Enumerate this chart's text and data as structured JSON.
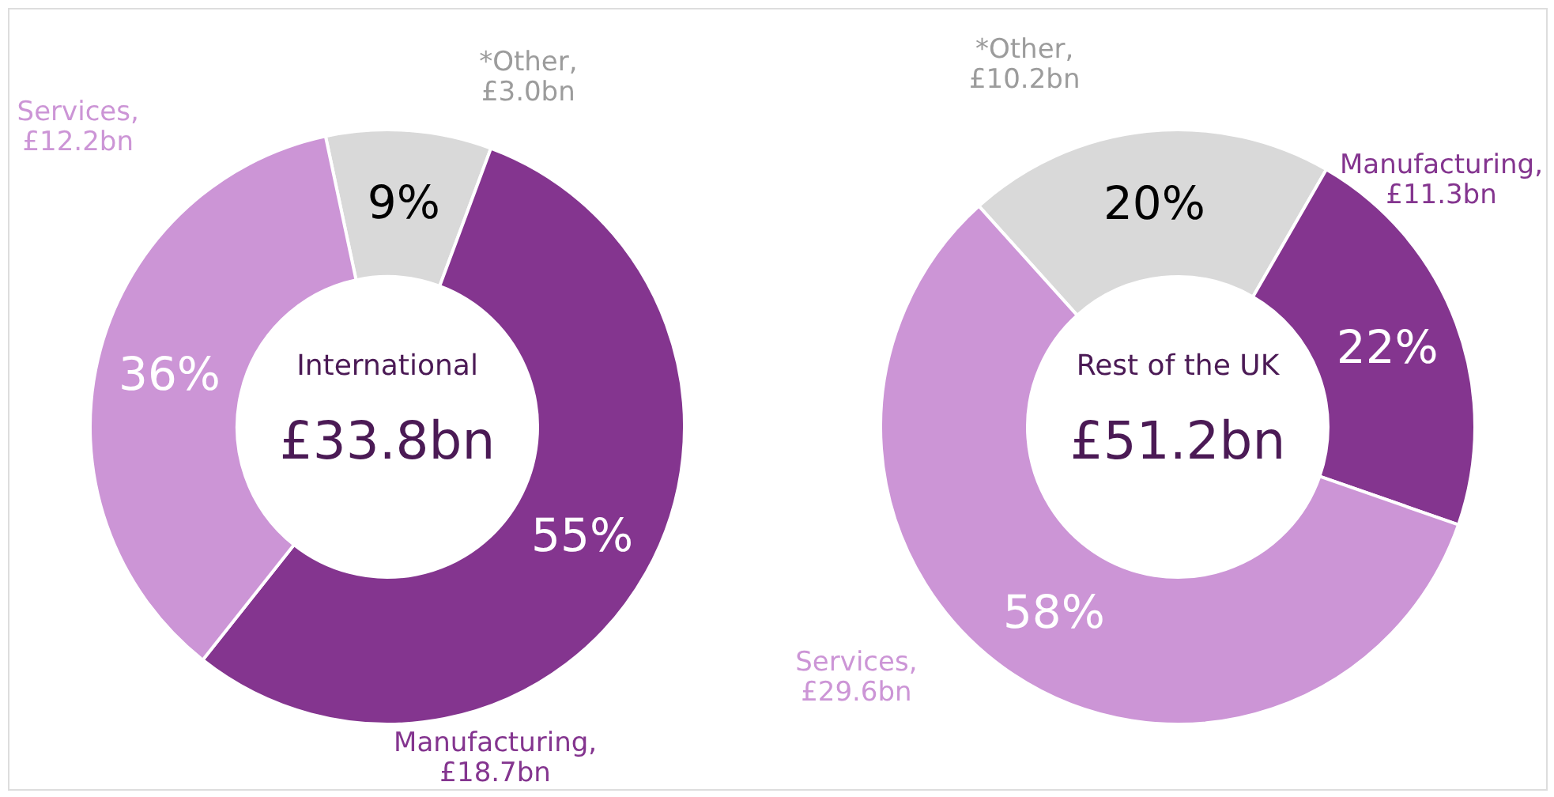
{
  "chart_data": [
    {
      "type": "donut",
      "title": "International",
      "subtitle": "£33.8bn",
      "categories": [
        "*Other, £3.0bn",
        "Manufacturing, £18.7bn",
        "Services, £12.2bn"
      ],
      "values": [
        9,
        55,
        36
      ],
      "colors": [
        "#d9d9d9",
        "#84358f",
        "#cc95d6"
      ],
      "value_labels": [
        "9%",
        "55%",
        "36%"
      ],
      "legend": false
    },
    {
      "type": "donut",
      "title": "Rest of the UK",
      "subtitle": "£51.2bn",
      "categories": [
        "*Other, £10.2bn",
        "Manufacturing, £11.3bn",
        "Services, £29.6bn"
      ],
      "values": [
        20,
        22,
        58
      ],
      "colors": [
        "#d9d9d9",
        "#84358f",
        "#cc95d6"
      ],
      "value_labels": [
        "20%",
        "22%",
        "58%"
      ],
      "legend": false
    }
  ]
}
